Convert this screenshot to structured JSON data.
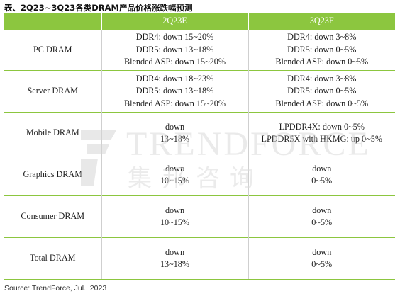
{
  "caption": "表、2Q23~3Q23各类DRAM产品价格涨跌幅预测",
  "watermark": {
    "brand": "TRENDFORCE",
    "sub": "集邦咨询"
  },
  "header": {
    "col1": "",
    "col2": "2Q23E",
    "col3": "3Q23F"
  },
  "rows": [
    {
      "name": "PC DRAM",
      "q2": [
        "DDR4: down 15~20%",
        "DDR5: down 13~18%",
        "Blended ASP: down 15~20%"
      ],
      "q3": [
        "DDR4: down 3~8%",
        "DDR5: down 0~5%",
        "Blended ASP: down 0~5%"
      ]
    },
    {
      "name": "Server DRAM",
      "q2": [
        "DDR4: down 18~23%",
        "DDR5: down 13~18%",
        "Blended ASP: down 15~20%"
      ],
      "q3": [
        "DDR4: down 3~8%",
        "DDR5: down 0~5%",
        "Blended ASP: down 0~5%"
      ]
    },
    {
      "name": "Mobile DRAM",
      "q2": [
        "down",
        "13~18%"
      ],
      "q3": [
        "LPDDR4X: down 0~5%",
        "LPDDR5X with HKMG: up 0~5%"
      ]
    },
    {
      "name": "Graphics DRAM",
      "q2": [
        "down",
        "10~15%"
      ],
      "q3": [
        "down",
        "0~5%"
      ]
    },
    {
      "name": "Consumer DRAM",
      "q2": [
        "down",
        "10~15%"
      ],
      "q3": [
        "down",
        "0~5%"
      ]
    },
    {
      "name": "Total DRAM",
      "q2": [
        "down",
        "13~18%"
      ],
      "q3": [
        "down",
        "0~5%"
      ]
    }
  ],
  "source": "Source: TrendForce, Jul., 2023",
  "colors": {
    "header_bg": "#8cc63f",
    "header_text": "#ffffff",
    "rule": "#8cc63f"
  }
}
